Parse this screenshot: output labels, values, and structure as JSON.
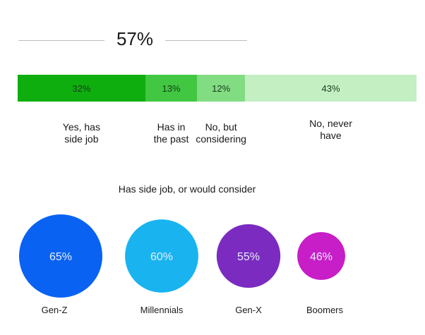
{
  "headline": "57%",
  "subtitle": "Has side job, or would consider",
  "chart_data": [
    {
      "type": "bar",
      "orientation": "horizontal-stacked",
      "total": 100,
      "segments": [
        {
          "label": "Yes, has\nside job",
          "value": 32,
          "value_label": "32%",
          "color": "#0fae0f",
          "text_color": "#1a3a1a"
        },
        {
          "label": "Has in\nthe past",
          "value": 13,
          "value_label": "13%",
          "color": "#41c741",
          "text_color": "#1a3a1a"
        },
        {
          "label": "No, but\nconsidering",
          "value": 12,
          "value_label": "12%",
          "color": "#82dc82",
          "text_color": "#1a3a1a"
        },
        {
          "label": "No, never\nhave",
          "value": 43,
          "value_label": "43%",
          "color": "#c3efc3",
          "text_color": "#1a3a1a"
        }
      ]
    },
    {
      "type": "bubble",
      "categories": [
        "Gen-Z",
        "Millennials",
        "Gen-X",
        "Boomers"
      ],
      "values": [
        65,
        60,
        55,
        46
      ],
      "value_labels": [
        "65%",
        "60%",
        "55%",
        "46%"
      ],
      "colors": [
        "#0a62f2",
        "#19b4f0",
        "#7b2bc0",
        "#c81ec8"
      ]
    }
  ]
}
